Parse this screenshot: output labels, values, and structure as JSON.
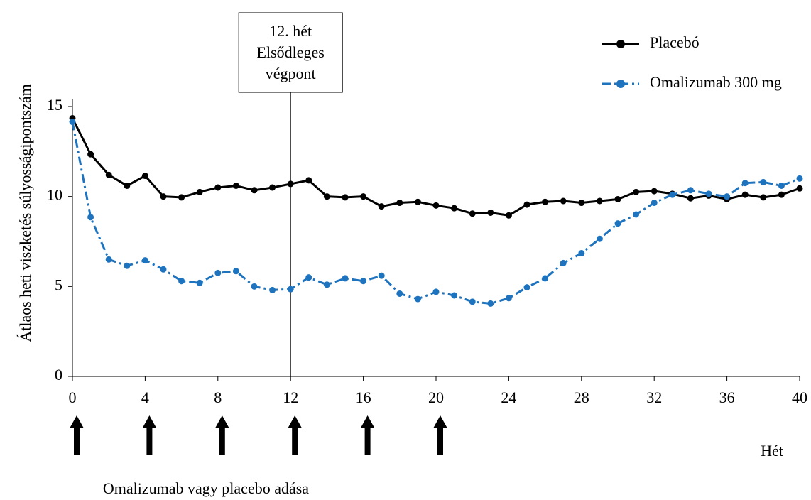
{
  "chart_data": {
    "type": "line",
    "ylabel": "Átlaos heti viszketés súlyosságipontszám",
    "xlabel": "Hét",
    "annotation": [
      "12. hét",
      "Elsődleges",
      "végpont"
    ],
    "annotation_x": 12,
    "dose_label": "Omalizumab vagy placebo adása",
    "dose_weeks": [
      0,
      4,
      8,
      12,
      16,
      20
    ],
    "x": [
      0,
      1,
      2,
      3,
      4,
      5,
      6,
      7,
      8,
      9,
      10,
      11,
      12,
      13,
      14,
      15,
      16,
      17,
      18,
      19,
      20,
      21,
      22,
      23,
      24,
      25,
      26,
      27,
      28,
      29,
      30,
      31,
      32,
      33,
      34,
      35,
      36,
      37,
      38,
      39,
      40
    ],
    "series": [
      {
        "name": "Placebó",
        "color": "#000000",
        "dash": "solid",
        "values": [
          14.35,
          12.35,
          11.2,
          10.6,
          11.15,
          10.0,
          9.95,
          10.25,
          10.5,
          10.6,
          10.35,
          10.5,
          10.7,
          10.9,
          10.0,
          9.95,
          10.0,
          9.45,
          9.65,
          9.7,
          9.5,
          9.35,
          9.05,
          9.1,
          8.95,
          9.55,
          9.7,
          9.75,
          9.65,
          9.75,
          9.85,
          10.25,
          10.3,
          10.15,
          9.9,
          10.05,
          9.85,
          10.1,
          9.95,
          10.1,
          10.45
        ]
      },
      {
        "name": "Omalizumab 300 mg",
        "color": "#1e73be",
        "dash": "dashdot",
        "values": [
          14.15,
          8.85,
          6.5,
          6.15,
          6.45,
          5.95,
          5.3,
          5.2,
          5.75,
          5.85,
          5.0,
          4.8,
          4.85,
          5.5,
          5.1,
          5.45,
          5.3,
          5.6,
          4.6,
          4.3,
          4.7,
          4.5,
          4.15,
          4.05,
          4.35,
          4.95,
          5.45,
          6.3,
          6.85,
          7.65,
          8.5,
          9.0,
          9.65,
          10.1,
          10.35,
          10.15,
          10.0,
          10.75,
          10.8,
          10.6,
          11.0
        ]
      }
    ],
    "xlim": [
      0,
      40
    ],
    "xticks": [
      0,
      4,
      8,
      12,
      16,
      20,
      24,
      28,
      32,
      36,
      40
    ],
    "ylim": [
      0,
      15
    ],
    "yticks": [
      0,
      5,
      10,
      15
    ],
    "legend": "top-right"
  }
}
